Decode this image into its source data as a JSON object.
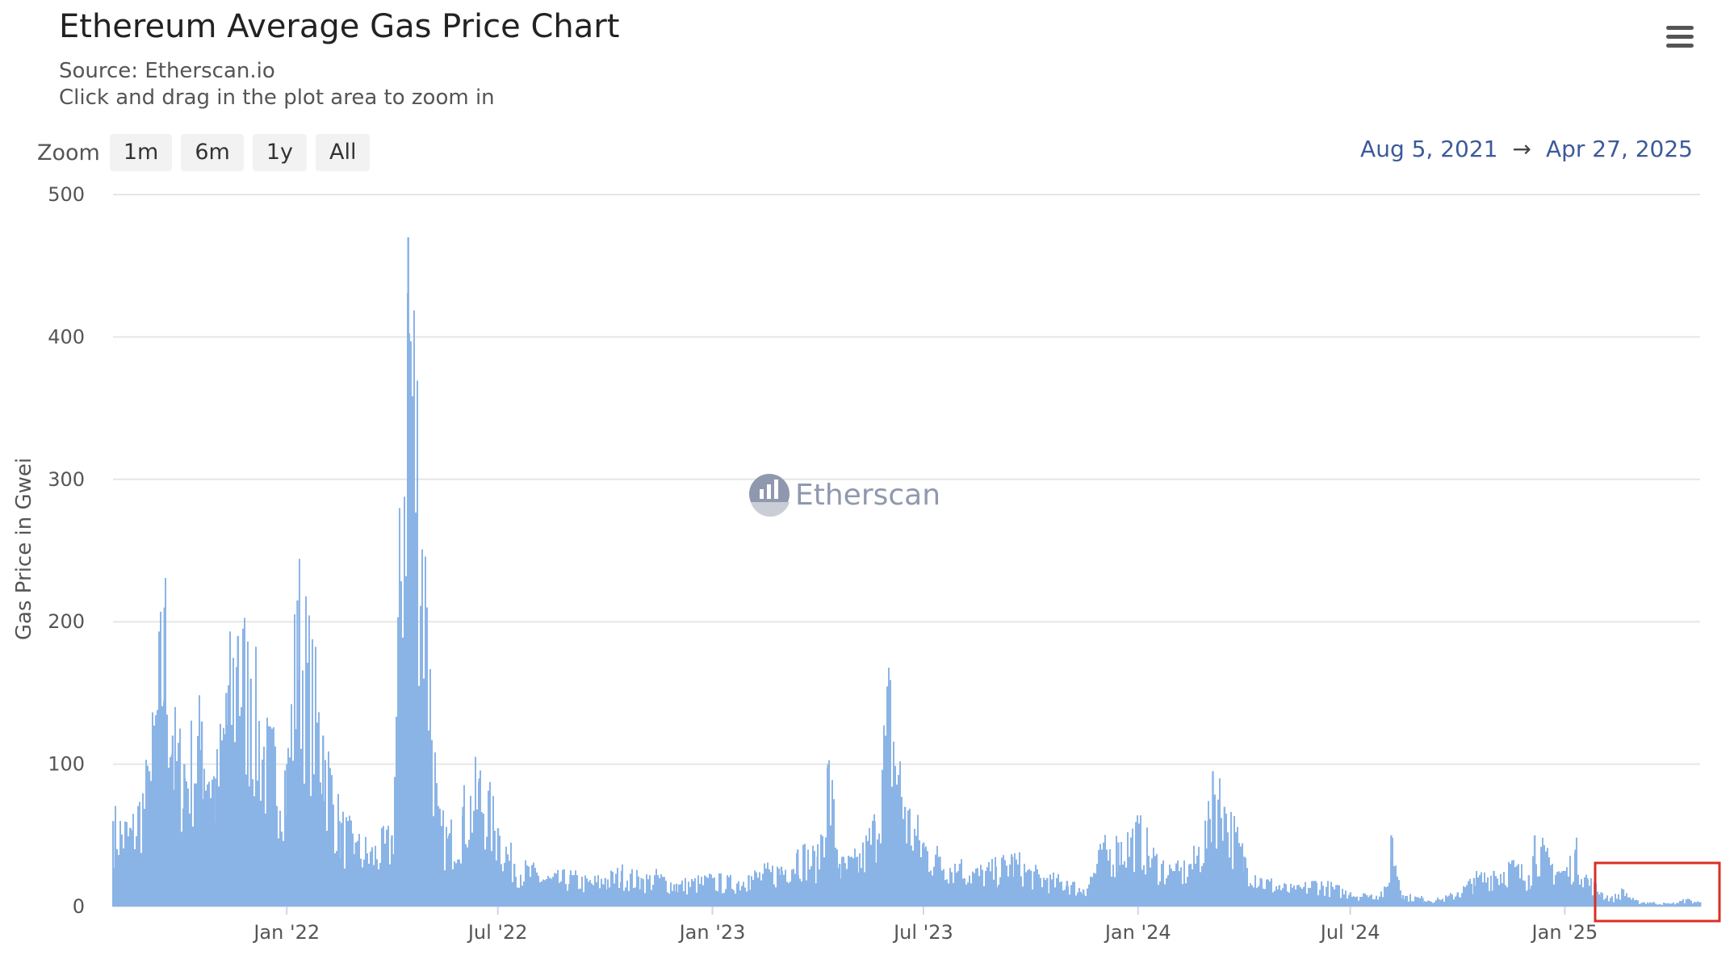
{
  "header": {
    "title": "Ethereum Average Gas Price Chart",
    "source": "Source: Etherscan.io",
    "hint": "Click and drag in the plot area to zoom in",
    "menu_icon": "hamburger-menu-icon"
  },
  "zoom": {
    "label": "Zoom",
    "buttons": [
      "1m",
      "6m",
      "1y",
      "All"
    ]
  },
  "range": {
    "from": "Aug 5, 2021",
    "arrow": "→",
    "to": "Apr 27, 2025"
  },
  "watermark": {
    "text": "Etherscan",
    "icon": "etherscan-logo-icon"
  },
  "colors": {
    "bar": "#8bb4e6",
    "grid": "#e6e6e6",
    "highlight": "#d93025",
    "watermark": "#8f98ae"
  },
  "chart_data": {
    "type": "area",
    "title": "Ethereum Average Gas Price Chart",
    "subtitle": "Source: Etherscan.io",
    "xlabel": "",
    "ylabel": "Gas Price in Gwei",
    "ylim": [
      0,
      500
    ],
    "yticks": [
      0,
      100,
      200,
      300,
      400,
      500
    ],
    "xlim": [
      "2021-08-05",
      "2025-04-27"
    ],
    "xticks": [
      {
        "date": "2022-01-01",
        "label": "Jan '22"
      },
      {
        "date": "2022-07-01",
        "label": "Jul '22"
      },
      {
        "date": "2023-01-01",
        "label": "Jan '23"
      },
      {
        "date": "2023-07-01",
        "label": "Jul '23"
      },
      {
        "date": "2024-01-01",
        "label": "Jan '24"
      },
      {
        "date": "2024-07-01",
        "label": "Jul '24"
      },
      {
        "date": "2025-01-01",
        "label": "Jan '25"
      }
    ],
    "grid": true,
    "legend": "none",
    "annotation": "red highlight box around Feb 2025 – Apr 2025 low values",
    "highlight_range": [
      "2025-01-27",
      "2025-04-27"
    ],
    "series": [
      {
        "x": [
          "2021-08-05",
          "2021-08-20",
          "2021-09-05",
          "2021-09-18",
          "2021-09-25",
          "2021-10-05",
          "2021-10-20",
          "2021-11-01",
          "2021-11-10",
          "2021-11-20",
          "2021-12-01",
          "2021-12-15",
          "2022-01-01",
          "2022-01-10",
          "2022-01-20",
          "2022-02-01",
          "2022-02-15",
          "2022-03-01",
          "2022-03-15",
          "2022-04-01",
          "2022-04-15",
          "2022-05-01",
          "2022-05-10",
          "2022-05-20",
          "2022-06-01",
          "2022-06-15",
          "2022-07-01",
          "2022-07-15",
          "2022-08-01",
          "2022-08-15",
          "2022-09-01",
          "2022-09-15",
          "2022-10-01",
          "2022-10-15",
          "2022-11-01",
          "2022-11-15",
          "2022-12-01",
          "2022-12-15",
          "2023-01-01",
          "2023-01-15",
          "2023-02-01",
          "2023-02-15",
          "2023-03-01",
          "2023-03-15",
          "2023-04-01",
          "2023-04-10",
          "2023-04-20",
          "2023-05-01",
          "2023-05-05",
          "2023-05-10",
          "2023-05-20",
          "2023-06-01",
          "2023-06-15",
          "2023-07-01",
          "2023-07-15",
          "2023-08-01",
          "2023-08-15",
          "2023-09-01",
          "2023-09-15",
          "2023-10-01",
          "2023-10-15",
          "2023-11-01",
          "2023-11-15",
          "2023-12-01",
          "2023-12-15",
          "2024-01-01",
          "2024-01-15",
          "2024-02-01",
          "2024-02-15",
          "2024-03-01",
          "2024-03-05",
          "2024-03-15",
          "2024-04-01",
          "2024-04-15",
          "2024-05-01",
          "2024-05-15",
          "2024-06-01",
          "2024-06-15",
          "2024-07-01",
          "2024-07-15",
          "2024-08-01",
          "2024-08-05",
          "2024-08-15",
          "2024-09-01",
          "2024-09-15",
          "2024-10-01",
          "2024-10-15",
          "2024-11-01",
          "2024-11-15",
          "2024-12-01",
          "2024-12-06",
          "2024-12-15",
          "2025-01-01",
          "2025-01-10",
          "2025-01-20",
          "2025-02-01",
          "2025-02-10",
          "2025-02-20",
          "2025-03-01",
          "2025-03-15",
          "2025-04-01",
          "2025-04-15",
          "2025-04-27"
        ],
        "y": [
          60,
          55,
          95,
          210,
          120,
          100,
          130,
          90,
          150,
          190,
          160,
          110,
          100,
          215,
          170,
          120,
          60,
          45,
          40,
          50,
          470,
          210,
          60,
          50,
          70,
          90,
          55,
          30,
          25,
          20,
          22,
          18,
          20,
          25,
          20,
          22,
          16,
          18,
          20,
          18,
          22,
          25,
          28,
          40,
          35,
          100,
          30,
          32,
          35,
          40,
          60,
          150,
          70,
          45,
          35,
          30,
          25,
          28,
          35,
          25,
          20,
          18,
          12,
          40,
          45,
          55,
          35,
          25,
          30,
          60,
          95,
          70,
          35,
          20,
          15,
          12,
          18,
          14,
          10,
          8,
          12,
          50,
          8,
          6,
          5,
          10,
          20,
          25,
          30,
          22,
          50,
          35,
          25,
          40,
          20,
          10,
          6,
          12,
          4,
          3,
          2,
          5,
          3
        ]
      }
    ]
  }
}
